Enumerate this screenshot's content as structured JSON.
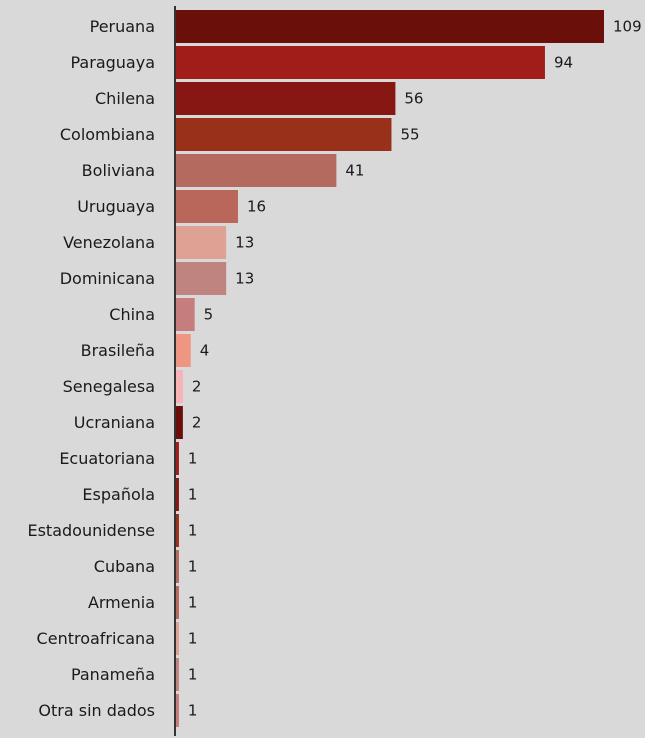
{
  "chart_data": {
    "type": "bar",
    "orientation": "horizontal",
    "title": "",
    "xlabel": "",
    "ylabel": "",
    "xlim": [
      0,
      109
    ],
    "grid": false,
    "legend": "none",
    "categories": [
      "Peruana",
      "Paraguaya",
      "Chilena",
      "Colombiana",
      "Boliviana",
      "Uruguaya",
      "Venezolana",
      "Dominicana",
      "China",
      "Brasileña",
      "Senegalesa",
      "Ucraniana",
      "Ecuatoriana",
      "Española",
      "Estadounidense",
      "Cubana",
      "Armenia",
      "Centroafricana",
      "Panameña",
      "Otra sin dados"
    ],
    "values": [
      109,
      94,
      56,
      55,
      41,
      16,
      13,
      13,
      5,
      4,
      2,
      2,
      1,
      1,
      1,
      1,
      1,
      1,
      1,
      1
    ],
    "colors": [
      "#6b0f0a",
      "#a11d19",
      "#861713",
      "#993019",
      "#b56a60",
      "#b8675a",
      "#dda293",
      "#bf8480",
      "#c67d7d",
      "#ef9683",
      "#f7b3b5",
      "#6b0f0a",
      "#a11d19",
      "#861713",
      "#993019",
      "#b56a60",
      "#b8675a",
      "#dda293",
      "#bf8480",
      "#c67d7d"
    ]
  }
}
